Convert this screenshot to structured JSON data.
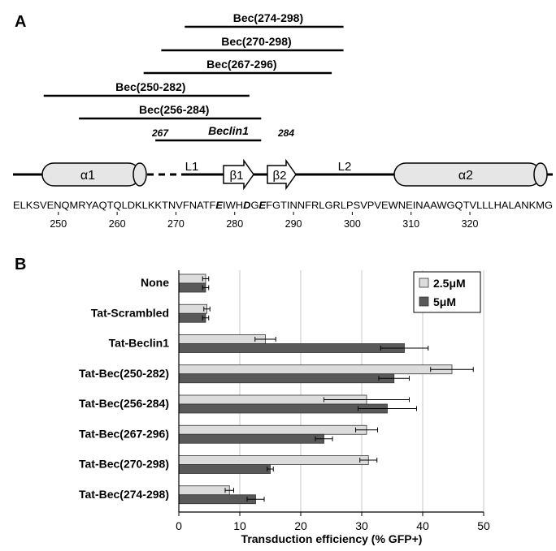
{
  "panel_a": {
    "letter": "A",
    "peptides": [
      {
        "label": "Bec(274-298)",
        "start": 274,
        "end": 298
      },
      {
        "label": "Bec(270-298)",
        "start": 270,
        "end": 298
      },
      {
        "label": "Bec(267-296)",
        "start": 267,
        "end": 296
      },
      {
        "label": "Bec(250-282)",
        "start": 250,
        "end": 282
      },
      {
        "label": "Bec(256-284)",
        "start": 256,
        "end": 284
      }
    ],
    "beclin1": {
      "label": "Beclin1",
      "start_label": "267",
      "end_label": "284",
      "start": 267,
      "end": 284
    },
    "structure": {
      "helix1": "α1",
      "helix2": "α2",
      "strand1": "β1",
      "strand2": "β2",
      "loop1": "L1",
      "loop2": "L2"
    },
    "sequence": {
      "segments": [
        {
          "text": "ELKSVENQMRYAQTQLDKLKKTNVFNATF",
          "bold": false
        },
        {
          "text": "E",
          "bold": true
        },
        {
          "text": "IWH",
          "bold": false
        },
        {
          "text": "D",
          "bold": true
        },
        {
          "text": "G",
          "bold": false
        },
        {
          "text": "E",
          "bold": true
        },
        {
          "text": "FGTINNFRLGRLPSVPVEWNEINAAWGQTVLLLHALANKMG",
          "bold": false
        }
      ],
      "ticks": [
        "250",
        "260",
        "270",
        "280",
        "290",
        "300",
        "310",
        "320"
      ]
    }
  },
  "chart_data": {
    "panel_letter": "B",
    "type": "bar",
    "orientation": "horizontal",
    "categories": [
      "None",
      "Tat-Scrambled",
      "Tat-Beclin1",
      "Tat-Bec(250-282)",
      "Tat-Bec(256-284)",
      "Tat-Bec(267-296)",
      "Tat-Bec(270-298)",
      "Tat-Bec(274-298)"
    ],
    "series": [
      {
        "name": "2.5μM",
        "color": "#dcdcdc",
        "values": [
          4.4,
          4.6,
          14.2,
          44.8,
          30.8,
          30.8,
          31.1,
          8.3
        ],
        "errors": [
          0.5,
          0.5,
          1.7,
          3.5,
          7.0,
          1.8,
          1.4,
          0.7
        ]
      },
      {
        "name": "5μM",
        "color": "#595959",
        "values": [
          4.4,
          4.4,
          37.0,
          35.3,
          34.2,
          23.8,
          15.0,
          12.6
        ],
        "errors": [
          0.5,
          0.5,
          3.9,
          2.5,
          4.8,
          1.4,
          0.5,
          1.4
        ]
      }
    ],
    "xlabel": "Transduction efficiency (% GFP+)",
    "xlim": [
      0,
      50
    ],
    "xticks": [
      "0",
      "10",
      "20",
      "30",
      "40",
      "50"
    ],
    "grid": "vertical",
    "legend_position": "top-right"
  }
}
